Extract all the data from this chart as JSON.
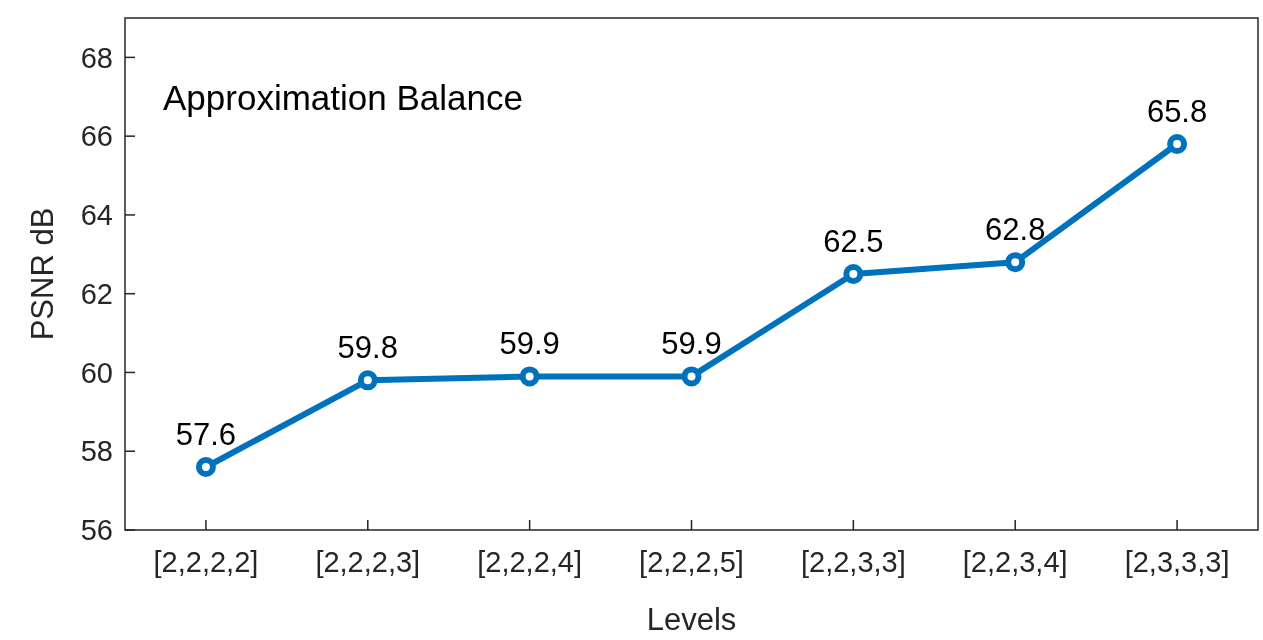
{
  "chart_data": {
    "type": "line",
    "title": "Approximation Balance",
    "xlabel": "Levels",
    "ylabel": "PSNR dB",
    "categories": [
      "[2,2,2,2]",
      "[2,2,2,3]",
      "[2,2,2,4]",
      "[2,2,2,5]",
      "[2,2,3,3]",
      "[2,2,3,4]",
      "[2,3,3,3]"
    ],
    "series": [
      {
        "color": "#0072bd",
        "values": [
          57.6,
          59.8,
          59.9,
          59.9,
          62.5,
          62.8,
          65.8
        ]
      }
    ],
    "ylim": [
      56,
      69
    ],
    "yticks": [
      56,
      58,
      60,
      62,
      64,
      66,
      68
    ],
    "grid": false,
    "marker": "circle",
    "line_style": "solid",
    "data_labels": true
  }
}
